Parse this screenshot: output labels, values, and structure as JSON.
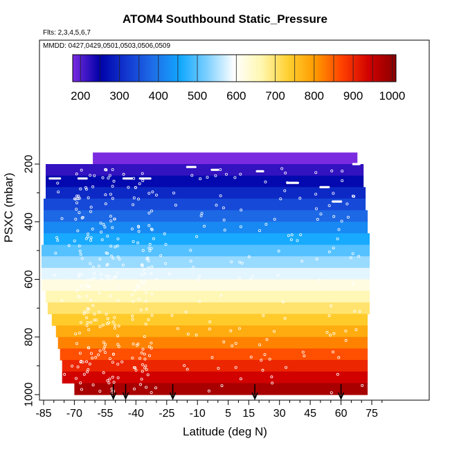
{
  "chart_data": {
    "type": "heatmap",
    "title": "ATOM4 Southbound Static_Pressure",
    "subtitle_flights": "Flts: 2,3,4,5,6,7",
    "subtitle_dates": "MMDD: 0427,0429,0501,0503,0506,0509",
    "xlabel": "Latitude (deg N)",
    "ylabel": "PSXC (mbar)",
    "xlim": [
      -88,
      82
    ],
    "ylim": [
      1020,
      150
    ],
    "x_ticks": [
      -85,
      -70,
      -55,
      -40,
      -25,
      -10,
      5,
      15,
      30,
      45,
      60,
      75
    ],
    "x_tick_labels": [
      "-85",
      "-70",
      "-55",
      "-40",
      "-25",
      "-10",
      "5",
      "15",
      "30",
      "45",
      "60",
      "75"
    ],
    "y_ticks": [
      200,
      400,
      600,
      800,
      1000
    ],
    "y_tick_labels": [
      "200",
      "400",
      "600",
      "800",
      "1000"
    ],
    "colorbar": {
      "range": [
        180,
        1010
      ],
      "ticks": [
        200,
        300,
        400,
        500,
        600,
        700,
        800,
        900,
        1000
      ],
      "tick_labels": [
        "200",
        "300",
        "400",
        "500",
        "600",
        "700",
        "800",
        "900",
        "1000"
      ],
      "colors": [
        "#7a2be0",
        "#0000a8",
        "#1238d0",
        "#1e6ee8",
        "#12a8ff",
        "#7fd0ff",
        "#ffffff",
        "#fff7b0",
        "#ffd030",
        "#ff9a00",
        "#ff4000",
        "#d00000",
        "#8a0000"
      ]
    },
    "layers": [
      {
        "p": 180,
        "lat_start": -61,
        "lat_end": 68
      },
      {
        "p": 220,
        "lat_start": -84,
        "lat_end": 71
      },
      {
        "p": 260,
        "lat_start": -84,
        "lat_end": 71
      },
      {
        "p": 300,
        "lat_start": -84,
        "lat_end": 72
      },
      {
        "p": 340,
        "lat_start": -85,
        "lat_end": 72
      },
      {
        "p": 380,
        "lat_start": -85,
        "lat_end": 73
      },
      {
        "p": 420,
        "lat_start": -85,
        "lat_end": 73
      },
      {
        "p": 460,
        "lat_start": -85,
        "lat_end": 74
      },
      {
        "p": 500,
        "lat_start": -86,
        "lat_end": 74
      },
      {
        "p": 540,
        "lat_start": -86,
        "lat_end": 74
      },
      {
        "p": 580,
        "lat_start": -86,
        "lat_end": 74
      },
      {
        "p": 620,
        "lat_start": -86,
        "lat_end": 74
      },
      {
        "p": 660,
        "lat_start": -84,
        "lat_end": 74
      },
      {
        "p": 700,
        "lat_start": -83,
        "lat_end": 74
      },
      {
        "p": 740,
        "lat_start": -81,
        "lat_end": 73
      },
      {
        "p": 780,
        "lat_start": -79,
        "lat_end": 73
      },
      {
        "p": 820,
        "lat_start": -78,
        "lat_end": 73
      },
      {
        "p": 860,
        "lat_start": -77,
        "lat_end": 73
      },
      {
        "p": 900,
        "lat_start": -76,
        "lat_end": 73
      },
      {
        "p": 940,
        "lat_start": -76,
        "lat_end": 73
      },
      {
        "p": 980,
        "lat_start": -70,
        "lat_end": 73
      }
    ],
    "layer_thickness": 40,
    "flight_level_segments": [
      {
        "p": 250,
        "lat_start": -82,
        "lat_end": -77
      },
      {
        "p": 250,
        "lat_start": -68,
        "lat_end": -64
      },
      {
        "p": 250,
        "lat_start": -46,
        "lat_end": -42
      },
      {
        "p": 250,
        "lat_start": -38,
        "lat_end": -33
      },
      {
        "p": 210,
        "lat_start": -15,
        "lat_end": -11
      },
      {
        "p": 220,
        "lat_start": -3,
        "lat_end": 0
      },
      {
        "p": 225,
        "lat_start": 19,
        "lat_end": 22
      },
      {
        "p": 265,
        "lat_start": 34,
        "lat_end": 39
      },
      {
        "p": 280,
        "lat_start": 50,
        "lat_end": 54
      },
      {
        "p": 330,
        "lat_start": 56,
        "lat_end": 60
      },
      {
        "p": 200,
        "lat_start": 66,
        "lat_end": 69
      }
    ],
    "profile_latitudes": [
      -51,
      -45,
      -22,
      18,
      60
    ],
    "profile_marker": "down-arrow",
    "legend": "colorbar-top"
  }
}
